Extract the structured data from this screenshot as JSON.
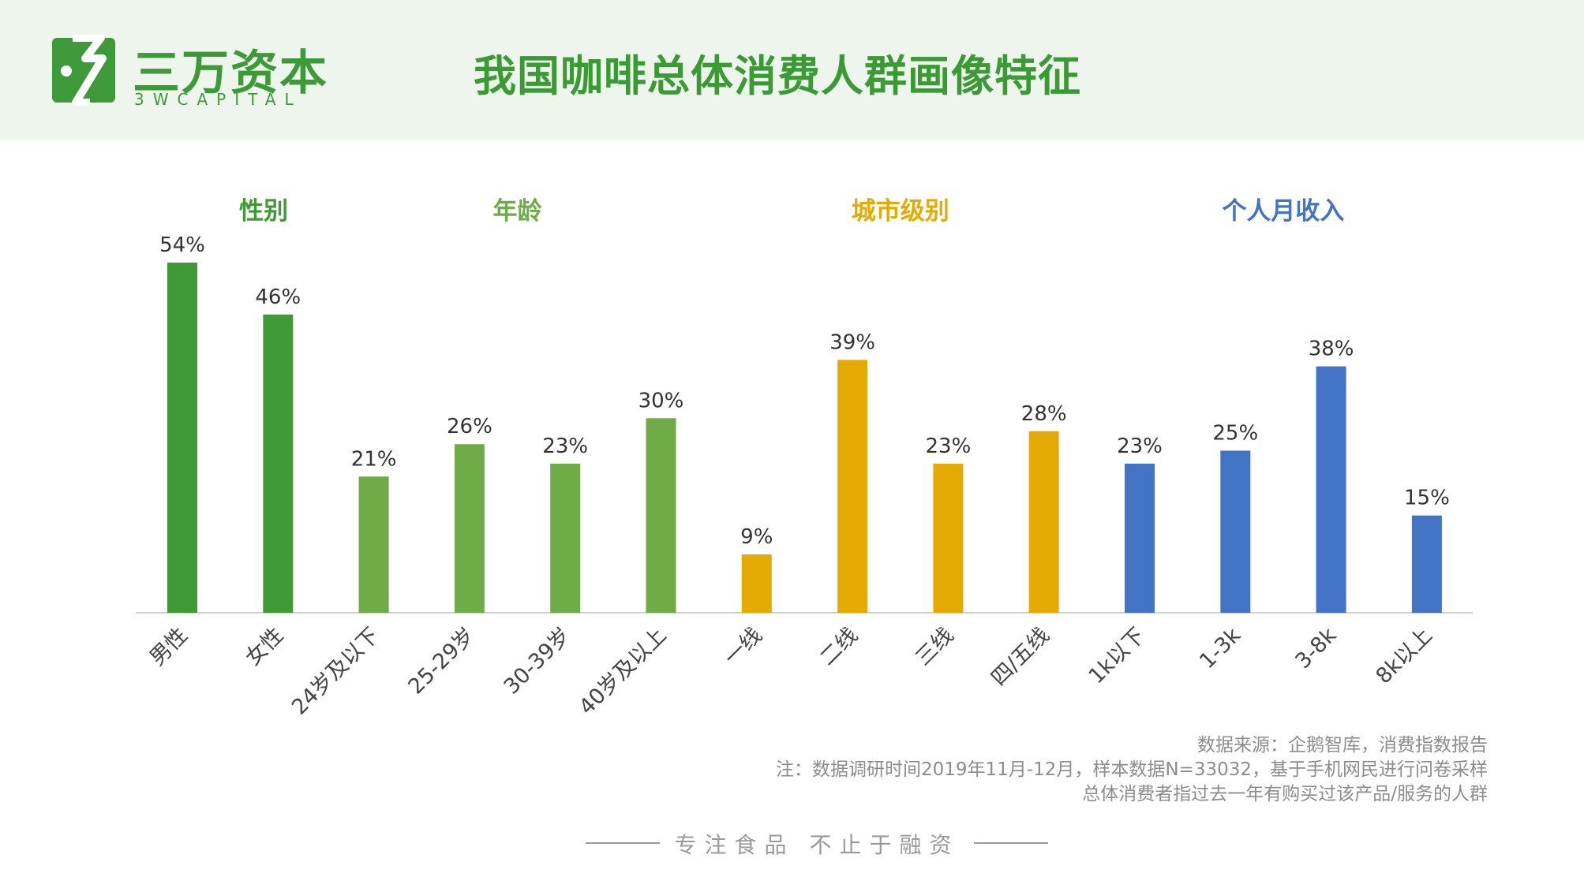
{
  "header": {
    "logo_cn": "三万资本",
    "logo_en": "3WCAPITAL",
    "title": "我国咖啡总体消费人群画像特征"
  },
  "chart_data": {
    "type": "bar",
    "groups": [
      {
        "label": "性别",
        "color": "#3f9a36",
        "categories": [
          "男性",
          "女性"
        ],
        "values": [
          54,
          46
        ]
      },
      {
        "label": "年龄",
        "color": "#6fab46",
        "categories": [
          "24岁及以下",
          "25-29岁",
          "30-39岁",
          "40岁及以上"
        ],
        "values": [
          21,
          26,
          23,
          30
        ]
      },
      {
        "label": "城市级别",
        "color": "#e3ab03",
        "categories": [
          "一线",
          "二线",
          "三线",
          "四/五线"
        ],
        "values": [
          9,
          39,
          23,
          28
        ]
      },
      {
        "label": "个人月收入",
        "color": "#4373c4",
        "categories": [
          "1k以下",
          "1-3k",
          "3-8k",
          "8k以上"
        ],
        "values": [
          23,
          25,
          38,
          15
        ]
      }
    ],
    "value_suffix": "%",
    "ylim": [
      0,
      56
    ],
    "grid": false
  },
  "source": {
    "line1": "数据来源：企鹅智库，消费指数报告",
    "line2": "注：数据调研时间2019年11月-12月，样本数据N=33032，基于手机网民进行问卷采样",
    "line3": "总体消费者指过去一年有购买过该产品/服务的人群"
  },
  "footer": {
    "slogan": "专注食品  不止于融资"
  }
}
